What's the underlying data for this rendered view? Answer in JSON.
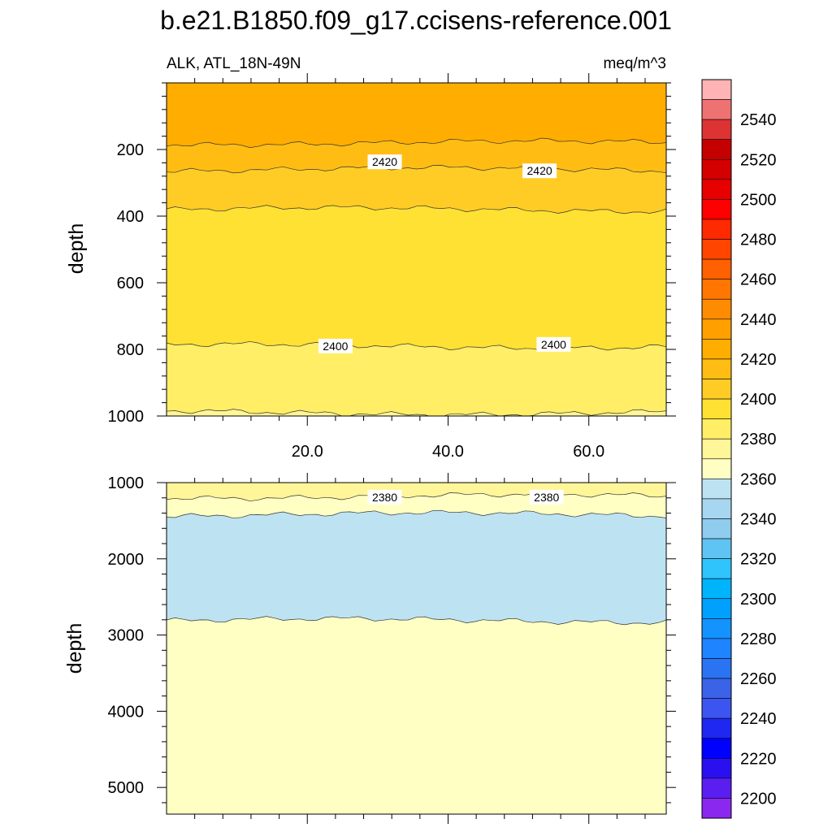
{
  "title": "b.e21.B1850.f09_g17.ccisens-reference.001",
  "variable_label": "ALK, ATL_18N-49N",
  "units_label": "meq/m^3",
  "chart_data": [
    {
      "type": "heatmap",
      "panel": "upper",
      "ylabel": "depth",
      "xlim": [
        0,
        71
      ],
      "ylim": [
        1000,
        0
      ],
      "x_ticks": [
        "20.0",
        "40.0",
        "60.0"
      ],
      "x_tick_values": [
        20,
        40,
        60
      ],
      "y_ticks": [
        "200",
        "400",
        "600",
        "800",
        "1000"
      ],
      "y_tick_values": [
        200,
        400,
        600,
        800,
        1000
      ],
      "contour_labels": [
        {
          "text": "2420",
          "x": 31,
          "y": 237
        },
        {
          "text": "2420",
          "x": 53,
          "y": 264
        },
        {
          "text": "2400",
          "x": 24,
          "y": 790
        },
        {
          "text": "2400",
          "x": 55,
          "y": 785
        }
      ],
      "bands": [
        {
          "low": 2420,
          "high": 2430,
          "color": "#ffad00",
          "top": 0
        },
        {
          "low": 2415,
          "high": 2420,
          "color": "#ffbd14",
          "top": 180
        },
        {
          "low": 2410,
          "high": 2415,
          "color": "#ffcc26",
          "top": 260
        },
        {
          "low": 2400,
          "high": 2410,
          "color": "#ffe133",
          "top": 380
        },
        {
          "low": 2390,
          "high": 2400,
          "color": "#ffee66",
          "top": 790
        },
        {
          "low": 2380,
          "high": 2390,
          "color": "#fff599",
          "top": 990
        }
      ]
    },
    {
      "type": "heatmap",
      "panel": "lower",
      "ylabel": "depth",
      "xlim": [
        0,
        71
      ],
      "ylim": [
        5350,
        1000
      ],
      "y_ticks": [
        "1000",
        "2000",
        "3000",
        "4000",
        "5000"
      ],
      "y_tick_values": [
        1000,
        2000,
        3000,
        4000,
        5000
      ],
      "contour_labels": [
        {
          "text": "2380",
          "x": 31,
          "y": 1190
        },
        {
          "text": "2380",
          "x": 54,
          "y": 1190
        }
      ],
      "bands": [
        {
          "low": 2380,
          "high": 2390,
          "color": "#fff599",
          "top": 1000
        },
        {
          "low": 2370,
          "high": 2380,
          "color": "#ffffc4",
          "top": 1180
        },
        {
          "low": 2360,
          "high": 2370,
          "color": "#bde3f2",
          "top": 1420
        },
        {
          "low": 2370,
          "high": 2380,
          "color": "#ffffc4",
          "top": 2810
        }
      ]
    }
  ],
  "colorbar": {
    "labels": [
      "2540",
      "2520",
      "2500",
      "2480",
      "2460",
      "2440",
      "2420",
      "2400",
      "2380",
      "2360",
      "2340",
      "2320",
      "2300",
      "2280",
      "2260",
      "2240",
      "2220",
      "2200"
    ],
    "label_values": [
      2540,
      2520,
      2500,
      2480,
      2460,
      2440,
      2420,
      2400,
      2380,
      2360,
      2340,
      2320,
      2300,
      2280,
      2260,
      2240,
      2220,
      2200
    ],
    "top_value": 2560,
    "bottom_value": 2190,
    "step": 10,
    "colors": [
      "#ffb3b5",
      "#ef7272",
      "#dd3333",
      "#c40000",
      "#d40000",
      "#e60000",
      "#ff0000",
      "#ff2a00",
      "#ff4500",
      "#ff6000",
      "#ff7600",
      "#ff8c00",
      "#ffa000",
      "#ffad00",
      "#ffbd14",
      "#ffcc26",
      "#ffe133",
      "#ffee66",
      "#fff599",
      "#ffffc4",
      "#bde3f2",
      "#a6d6f0",
      "#8fccee",
      "#5fc4f3",
      "#2fc4fb",
      "#00b4fb",
      "#00a0ff",
      "#1493ff",
      "#1e84ff",
      "#2a74f3",
      "#3a63e8",
      "#3c55f0",
      "#1e28f0",
      "#0000ff",
      "#2a10f0",
      "#5a1ef0",
      "#8a28f0"
    ]
  }
}
